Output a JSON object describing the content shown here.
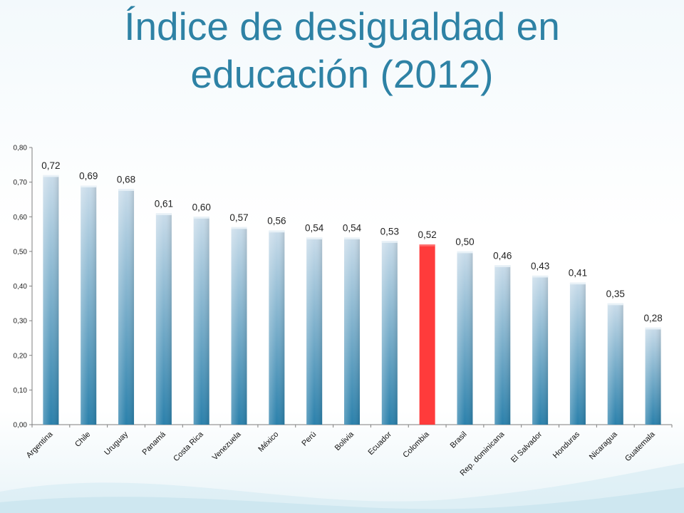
{
  "slide": {
    "title_line1": "Índice de desigualdad en",
    "title_line2": "educación (2012)"
  },
  "colors": {
    "title": "#2e82a5",
    "bar_top": "#c9dcea",
    "bar_bottom": "#2a80ab",
    "highlight": "#ff3b3b",
    "axis": "#7f7f7f"
  },
  "chart_data": {
    "type": "bar",
    "title": "",
    "xlabel": "",
    "ylabel": "",
    "ylim": [
      0,
      0.8
    ],
    "yticks": [
      0,
      0.1,
      0.2,
      0.3,
      0.4,
      0.5,
      0.6,
      0.7,
      0.8
    ],
    "ytick_labels": [
      "0,00",
      "0,10",
      "0,20",
      "0,30",
      "0,40",
      "0,50",
      "0,60",
      "0,70",
      "0,80"
    ],
    "grid": false,
    "legend": "none",
    "categories": [
      "Argentina",
      "Chile",
      "Uruguay",
      "Panamá",
      "Costa Rica",
      "Venezuela",
      "México",
      "Perú",
      "Bolivia",
      "Ecuador",
      "Colombia",
      "Brasil",
      "Rep. dominicana",
      "El Salvador",
      "Honduras",
      "Nicaragua",
      "Guatemala"
    ],
    "values": [
      0.72,
      0.69,
      0.68,
      0.61,
      0.6,
      0.57,
      0.56,
      0.54,
      0.54,
      0.53,
      0.52,
      0.5,
      0.46,
      0.43,
      0.41,
      0.35,
      0.28
    ],
    "value_labels": [
      "0,72",
      "0,69",
      "0,68",
      "0,61",
      "0,60",
      "0,57",
      "0,56",
      "0,54",
      "0,54",
      "0,53",
      "0,52",
      "0,50",
      "0,46",
      "0,43",
      "0,41",
      "0,35",
      "0,28"
    ],
    "highlight_category": "Colombia"
  }
}
